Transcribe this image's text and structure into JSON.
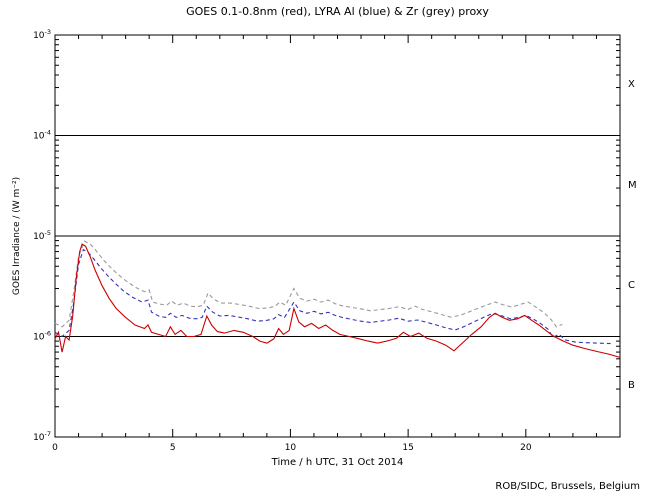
{
  "chart_data": {
    "type": "line",
    "title": "GOES 0.1-0.8nm (red), LYRA Al (blue) & Zr (grey) proxy",
    "xlabel": "Time / h UTC, 31 Oct 2014",
    "ylabel": "GOES Irradiance / (W m⁻²)",
    "credit": "ROB/SIDC, Brussels, Belgium",
    "legend_position": "none",
    "grid": "flare-class thresholds only",
    "xlim": [
      0,
      24
    ],
    "ylog": [
      -7,
      -3
    ],
    "x_minor_step": 1,
    "x_ticks": [
      {
        "value": 0,
        "label": "0"
      },
      {
        "value": 5,
        "label": "5"
      },
      {
        "value": 10,
        "label": "10"
      },
      {
        "value": 15,
        "label": "15"
      },
      {
        "value": 20,
        "label": "20"
      }
    ],
    "y_decades": [
      -3,
      -4,
      -5,
      -6,
      -7
    ],
    "y_tick_base": "10",
    "hlines": [
      0.0001,
      1e-05,
      1e-06
    ],
    "flare_classes": [
      "X",
      "M",
      "C",
      "B"
    ],
    "frame_color": "#000000",
    "series": [
      {
        "name": "LYRA Zr proxy",
        "color": "#9a9a9a",
        "dash": "4,3",
        "points": [
          [
            0.0,
            1.35e-06
          ],
          [
            0.3,
            1.25e-06
          ],
          [
            0.6,
            1.45e-06
          ],
          [
            0.8,
            2.8e-06
          ],
          [
            1.0,
            6.2e-06
          ],
          [
            1.25,
            8.9e-06
          ],
          [
            1.5,
            8.3e-06
          ],
          [
            1.75,
            7.1e-06
          ],
          [
            2.05,
            5.8e-06
          ],
          [
            2.35,
            4.9e-06
          ],
          [
            2.65,
            4.2e-06
          ],
          [
            3.0,
            3.6e-06
          ],
          [
            3.4,
            3.1e-06
          ],
          [
            3.8,
            2.8e-06
          ],
          [
            4.0,
            2.9e-06
          ],
          [
            4.15,
            2.2e-06
          ],
          [
            4.45,
            2.1e-06
          ],
          [
            4.75,
            2.05e-06
          ],
          [
            4.95,
            2.25e-06
          ],
          [
            5.2,
            2.05e-06
          ],
          [
            5.45,
            2.15e-06
          ],
          [
            5.75,
            2e-06
          ],
          [
            6.05,
            1.98e-06
          ],
          [
            6.3,
            2.05e-06
          ],
          [
            6.5,
            2.7e-06
          ],
          [
            6.75,
            2.35e-06
          ],
          [
            7.05,
            2.15e-06
          ],
          [
            7.45,
            2.15e-06
          ],
          [
            7.85,
            2.08e-06
          ],
          [
            8.25,
            2e-06
          ],
          [
            8.65,
            1.9e-06
          ],
          [
            9.05,
            1.92e-06
          ],
          [
            9.35,
            2e-06
          ],
          [
            9.55,
            2.2e-06
          ],
          [
            9.8,
            2.05e-06
          ],
          [
            10.15,
            3e-06
          ],
          [
            10.4,
            2.4e-06
          ],
          [
            10.7,
            2.25e-06
          ],
          [
            11.0,
            2.35e-06
          ],
          [
            11.3,
            2.2e-06
          ],
          [
            11.6,
            2.3e-06
          ],
          [
            11.9,
            2.12e-06
          ],
          [
            12.2,
            2.02e-06
          ],
          [
            12.6,
            1.95e-06
          ],
          [
            13.0,
            1.88e-06
          ],
          [
            13.4,
            1.8e-06
          ],
          [
            13.8,
            1.85e-06
          ],
          [
            14.2,
            1.9e-06
          ],
          [
            14.6,
            1.98e-06
          ],
          [
            15.0,
            1.86e-06
          ],
          [
            15.3,
            2e-06
          ],
          [
            15.6,
            1.86e-06
          ],
          [
            16.0,
            1.76e-06
          ],
          [
            16.4,
            1.66e-06
          ],
          [
            16.8,
            1.56e-06
          ],
          [
            17.2,
            1.62e-06
          ],
          [
            17.6,
            1.76e-06
          ],
          [
            18.0,
            1.92e-06
          ],
          [
            18.4,
            2.08e-06
          ],
          [
            18.7,
            2.2e-06
          ],
          [
            19.0,
            2.08e-06
          ],
          [
            19.4,
            1.96e-06
          ],
          [
            19.8,
            2.1e-06
          ],
          [
            20.1,
            2.2e-06
          ],
          [
            20.45,
            1.95e-06
          ],
          [
            20.8,
            1.7e-06
          ],
          [
            21.1,
            1.45e-06
          ],
          [
            21.3,
            1.25e-06
          ],
          [
            21.55,
            1.32e-06
          ]
        ]
      },
      {
        "name": "LYRA Al proxy",
        "color": "#3333bb",
        "dash": "4,3",
        "points": [
          [
            0.0,
            1.1e-06
          ],
          [
            0.3,
            1e-06
          ],
          [
            0.6,
            1.15e-06
          ],
          [
            0.8,
            2.2e-06
          ],
          [
            1.0,
            5.2e-06
          ],
          [
            1.2,
            7.3e-06
          ],
          [
            1.4,
            6.9e-06
          ],
          [
            1.65,
            5.9e-06
          ],
          [
            1.95,
            4.8e-06
          ],
          [
            2.25,
            4e-06
          ],
          [
            2.55,
            3.4e-06
          ],
          [
            2.9,
            2.85e-06
          ],
          [
            3.3,
            2.45e-06
          ],
          [
            3.7,
            2.2e-06
          ],
          [
            3.95,
            2.3e-06
          ],
          [
            4.1,
            1.75e-06
          ],
          [
            4.4,
            1.6e-06
          ],
          [
            4.7,
            1.55e-06
          ],
          [
            4.9,
            1.7e-06
          ],
          [
            5.15,
            1.55e-06
          ],
          [
            5.4,
            1.62e-06
          ],
          [
            5.7,
            1.52e-06
          ],
          [
            6.0,
            1.5e-06
          ],
          [
            6.25,
            1.55e-06
          ],
          [
            6.45,
            2e-06
          ],
          [
            6.7,
            1.75e-06
          ],
          [
            7.0,
            1.6e-06
          ],
          [
            7.4,
            1.62e-06
          ],
          [
            7.8,
            1.56e-06
          ],
          [
            8.2,
            1.5e-06
          ],
          [
            8.6,
            1.42e-06
          ],
          [
            9.0,
            1.45e-06
          ],
          [
            9.3,
            1.5e-06
          ],
          [
            9.5,
            1.65e-06
          ],
          [
            9.75,
            1.55e-06
          ],
          [
            10.15,
            2.2e-06
          ],
          [
            10.4,
            1.8e-06
          ],
          [
            10.7,
            1.7e-06
          ],
          [
            11.0,
            1.78e-06
          ],
          [
            11.3,
            1.68e-06
          ],
          [
            11.6,
            1.74e-06
          ],
          [
            11.9,
            1.62e-06
          ],
          [
            12.2,
            1.55e-06
          ],
          [
            12.6,
            1.48e-06
          ],
          [
            13.0,
            1.42e-06
          ],
          [
            13.4,
            1.38e-06
          ],
          [
            13.8,
            1.42e-06
          ],
          [
            14.2,
            1.46e-06
          ],
          [
            14.6,
            1.52e-06
          ],
          [
            15.0,
            1.42e-06
          ],
          [
            15.4,
            1.46e-06
          ],
          [
            15.8,
            1.38e-06
          ],
          [
            16.2,
            1.3e-06
          ],
          [
            16.6,
            1.22e-06
          ],
          [
            17.0,
            1.16e-06
          ],
          [
            17.4,
            1.26e-06
          ],
          [
            17.8,
            1.4e-06
          ],
          [
            18.2,
            1.55e-06
          ],
          [
            18.6,
            1.7e-06
          ],
          [
            19.0,
            1.6e-06
          ],
          [
            19.35,
            1.5e-06
          ],
          [
            19.7,
            1.55e-06
          ],
          [
            20.0,
            1.62e-06
          ],
          [
            20.3,
            1.5e-06
          ],
          [
            20.6,
            1.36e-06
          ],
          [
            20.95,
            1.18e-06
          ],
          [
            21.15,
            9.8e-07
          ],
          [
            21.4,
            1.05e-06
          ],
          [
            21.7,
            9.2e-07
          ],
          [
            22.1,
            8.8e-07
          ],
          [
            22.5,
            8.7e-07
          ],
          [
            23.0,
            8.6e-07
          ],
          [
            23.6,
            8.5e-07
          ]
        ]
      },
      {
        "name": "GOES 0.1-0.8nm",
        "color": "#cc0000",
        "dash": null,
        "points": [
          [
            0.0,
            9.5e-07
          ],
          [
            0.15,
            1.1e-06
          ],
          [
            0.3,
            7e-07
          ],
          [
            0.45,
            1e-06
          ],
          [
            0.6,
            9.2e-07
          ],
          [
            0.75,
            1.6e-06
          ],
          [
            0.9,
            3.8e-06
          ],
          [
            1.05,
            7e-06
          ],
          [
            1.15,
            8.3e-06
          ],
          [
            1.3,
            7.9e-06
          ],
          [
            1.5,
            6.2e-06
          ],
          [
            1.7,
            4.6e-06
          ],
          [
            2.0,
            3.2e-06
          ],
          [
            2.3,
            2.4e-06
          ],
          [
            2.6,
            1.9e-06
          ],
          [
            3.0,
            1.55e-06
          ],
          [
            3.4,
            1.3e-06
          ],
          [
            3.8,
            1.2e-06
          ],
          [
            3.95,
            1.3e-06
          ],
          [
            4.1,
            1.1e-06
          ],
          [
            4.4,
            1.05e-06
          ],
          [
            4.7,
            1e-06
          ],
          [
            4.9,
            1.25e-06
          ],
          [
            5.1,
            1.05e-06
          ],
          [
            5.35,
            1.15e-06
          ],
          [
            5.6,
            1e-06
          ],
          [
            5.9,
            1e-06
          ],
          [
            6.2,
            1.05e-06
          ],
          [
            6.45,
            1.6e-06
          ],
          [
            6.65,
            1.3e-06
          ],
          [
            6.9,
            1.12e-06
          ],
          [
            7.2,
            1.08e-06
          ],
          [
            7.6,
            1.15e-06
          ],
          [
            8.0,
            1.1e-06
          ],
          [
            8.4,
            1e-06
          ],
          [
            8.7,
            9e-07
          ],
          [
            9.0,
            8.6e-07
          ],
          [
            9.3,
            9.5e-07
          ],
          [
            9.5,
            1.2e-06
          ],
          [
            9.7,
            1.05e-06
          ],
          [
            9.95,
            1.15e-06
          ],
          [
            10.15,
            1.9e-06
          ],
          [
            10.35,
            1.4e-06
          ],
          [
            10.6,
            1.25e-06
          ],
          [
            10.9,
            1.35e-06
          ],
          [
            11.2,
            1.2e-06
          ],
          [
            11.5,
            1.3e-06
          ],
          [
            11.8,
            1.15e-06
          ],
          [
            12.1,
            1.05e-06
          ],
          [
            12.5,
            1e-06
          ],
          [
            12.9,
            9.5e-07
          ],
          [
            13.3,
            9e-07
          ],
          [
            13.7,
            8.6e-07
          ],
          [
            14.1,
            9e-07
          ],
          [
            14.5,
            9.6e-07
          ],
          [
            14.8,
            1.1e-06
          ],
          [
            15.1,
            1e-06
          ],
          [
            15.45,
            1.08e-06
          ],
          [
            15.8,
            9.6e-07
          ],
          [
            16.2,
            9e-07
          ],
          [
            16.6,
            8.2e-07
          ],
          [
            16.95,
            7.2e-07
          ],
          [
            17.3,
            8.6e-07
          ],
          [
            17.7,
            1.05e-06
          ],
          [
            18.1,
            1.25e-06
          ],
          [
            18.45,
            1.55e-06
          ],
          [
            18.7,
            1.7e-06
          ],
          [
            19.0,
            1.55e-06
          ],
          [
            19.3,
            1.45e-06
          ],
          [
            19.65,
            1.5e-06
          ],
          [
            19.95,
            1.62e-06
          ],
          [
            20.25,
            1.45e-06
          ],
          [
            20.55,
            1.3e-06
          ],
          [
            20.85,
            1.15e-06
          ],
          [
            21.2,
            1e-06
          ],
          [
            21.6,
            9e-07
          ],
          [
            22.0,
            8.2e-07
          ],
          [
            22.5,
            7.6e-07
          ],
          [
            23.0,
            7.1e-07
          ],
          [
            23.5,
            6.7e-07
          ],
          [
            24.0,
            6.2e-07
          ]
        ]
      }
    ]
  }
}
